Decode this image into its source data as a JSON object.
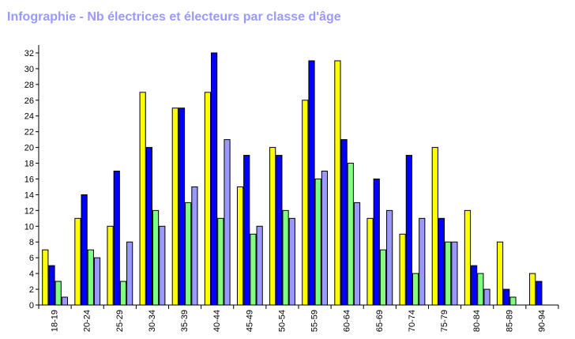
{
  "chart_data": {
    "type": "bar",
    "title": "Infographie - Nb électrices et électeurs par classe d'âge",
    "xlabel": "",
    "ylabel": "",
    "ylim": [
      0,
      33
    ],
    "yticks": [
      0,
      2,
      4,
      6,
      8,
      10,
      12,
      14,
      16,
      18,
      20,
      22,
      24,
      26,
      28,
      30,
      32
    ],
    "grid": false,
    "legend": "none",
    "categories": [
      "18-19",
      "20-24",
      "25-29",
      "30-34",
      "35-39",
      "40-44",
      "45-49",
      "50-54",
      "55-59",
      "60-64",
      "65-69",
      "70-74",
      "75-79",
      "80-84",
      "85-89",
      "90-94"
    ],
    "series": [
      {
        "color": "#ffff00",
        "values": [
          7,
          11,
          10,
          27,
          25,
          27,
          15,
          20,
          26,
          31,
          11,
          9,
          20,
          12,
          8,
          4
        ]
      },
      {
        "color": "#0000ff",
        "values": [
          5,
          14,
          17,
          20,
          25,
          32,
          19,
          19,
          31,
          21,
          16,
          19,
          11,
          5,
          2,
          3
        ]
      },
      {
        "color": "#80ff80",
        "values": [
          3,
          7,
          3,
          12,
          13,
          11,
          9,
          12,
          16,
          18,
          7,
          4,
          8,
          4,
          1,
          0
        ]
      },
      {
        "color": "#9999ff",
        "values": [
          1,
          6,
          8,
          10,
          15,
          21,
          10,
          11,
          17,
          13,
          12,
          11,
          8,
          2,
          0,
          0
        ]
      }
    ]
  }
}
